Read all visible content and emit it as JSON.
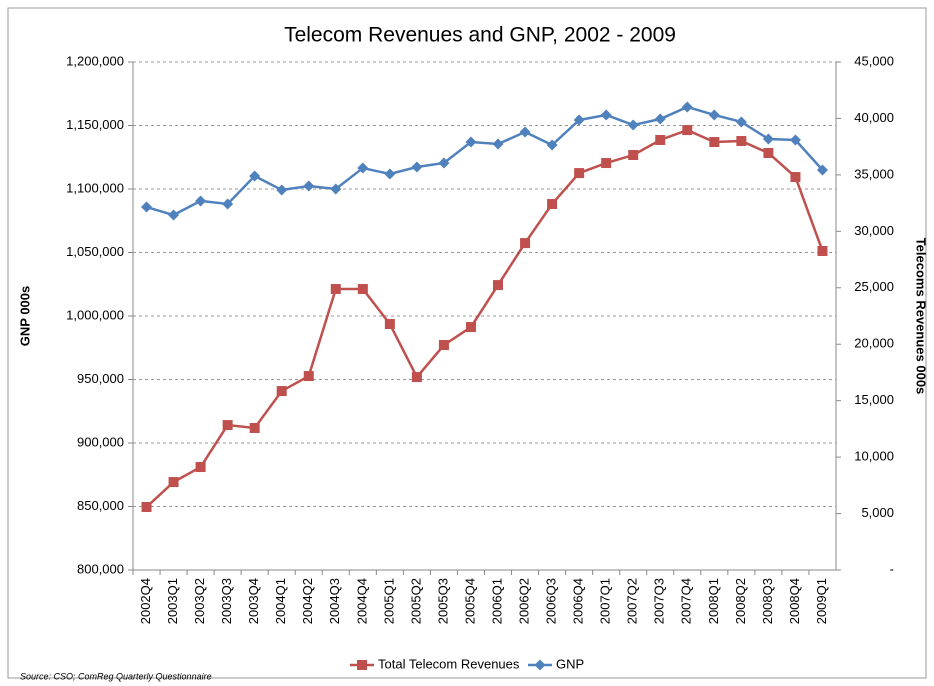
{
  "chart_data": {
    "type": "line",
    "title": "Telecom Revenues and GNP, 2002 - 2009",
    "y_label": "GNP 000s",
    "y2_label": "Telecoms Revenues 000s",
    "source": "Source: CSO; ComReg Quarterly Questionnaire",
    "categories": [
      "2002Q4",
      "2003Q1",
      "2003Q2",
      "2003Q3",
      "2003Q4",
      "2004Q1",
      "2004Q2",
      "2004Q3",
      "2004Q4",
      "2005Q1",
      "2005Q2",
      "2005Q3",
      "2005Q4",
      "2006Q1",
      "2006Q2",
      "2006Q3",
      "2006Q4",
      "2007Q1",
      "2007Q2",
      "2007Q3",
      "2007Q4",
      "2008Q1",
      "2008Q2",
      "2008Q3",
      "2008Q4",
      "2009Q1"
    ],
    "series": [
      {
        "name": "Total Telecom Revenues",
        "color": "#c0504d",
        "marker": "square",
        "axis": "y2",
        "values": [
          5580,
          7790,
          9120,
          12840,
          12580,
          15850,
          17180,
          24890,
          24890,
          21790,
          17090,
          19930,
          21520,
          25240,
          28960,
          32420,
          35160,
          36050,
          36760,
          38090,
          38970,
          37910,
          38000,
          36940,
          34810,
          28260
        ]
      },
      {
        "name": "GNP",
        "color": "#4f81bd",
        "marker": "diamond",
        "axis": "y",
        "values": [
          1085800,
          1079500,
          1090600,
          1088200,
          1110200,
          1099200,
          1102400,
          1100000,
          1116500,
          1111800,
          1117300,
          1120500,
          1137000,
          1135400,
          1144900,
          1134600,
          1154300,
          1158300,
          1150400,
          1155100,
          1164600,
          1158300,
          1152800,
          1139400,
          1138600,
          1115000
        ]
      }
    ],
    "ylim": [
      800000,
      1200000
    ],
    "yticks": [
      {
        "value": 800000,
        "label": "800,000"
      },
      {
        "value": 850000,
        "label": "850,000"
      },
      {
        "value": 900000,
        "label": "900,000"
      },
      {
        "value": 950000,
        "label": "950,000"
      },
      {
        "value": 1000000,
        "label": "1,000,000"
      },
      {
        "value": 1050000,
        "label": "1,050,000"
      },
      {
        "value": 1100000,
        "label": "1,100,000"
      },
      {
        "value": 1150000,
        "label": "1,150,000"
      },
      {
        "value": 1200000,
        "label": "1,200,000"
      }
    ],
    "y2lim": [
      0,
      45000
    ],
    "y2ticks": [
      {
        "value": 0,
        "label": "-"
      },
      {
        "value": 5000,
        "label": "5,000"
      },
      {
        "value": 10000,
        "label": "10,000"
      },
      {
        "value": 15000,
        "label": "15,000"
      },
      {
        "value": 20000,
        "label": "20,000"
      },
      {
        "value": 25000,
        "label": "25,000"
      },
      {
        "value": 30000,
        "label": "30,000"
      },
      {
        "value": 35000,
        "label": "35,000"
      },
      {
        "value": 40000,
        "label": "40,000"
      },
      {
        "value": 45000,
        "label": "45,000"
      }
    ],
    "grid": true
  }
}
